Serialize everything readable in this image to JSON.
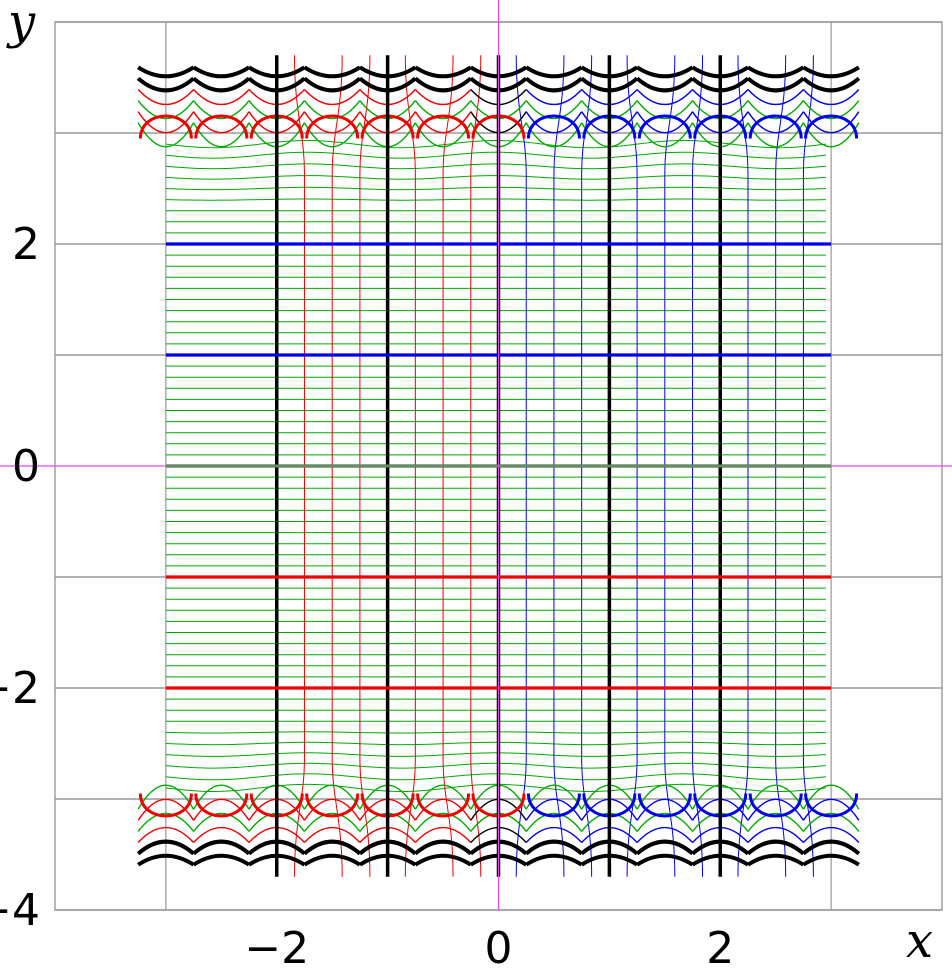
{
  "chart_data": {
    "type": "line",
    "title": "",
    "xlabel": "x",
    "ylabel": "y",
    "xlim": [
      -4,
      4
    ],
    "ylim": [
      -4,
      4
    ],
    "grid": true,
    "x_ticks": [
      {
        "value": -2,
        "label": "−2"
      },
      {
        "value": 0,
        "label": "0"
      },
      {
        "value": 2,
        "label": "2"
      }
    ],
    "y_ticks": [
      {
        "value": 2,
        "label": "2"
      },
      {
        "value": 0,
        "label": "0"
      },
      {
        "value": -2,
        "label": "−2"
      },
      {
        "value": -4,
        "label": "−4"
      }
    ],
    "plot_domain": {
      "x": [
        -3,
        3
      ],
      "y": [
        -4,
        4
      ]
    },
    "colors": {
      "axes": "#ee44ee",
      "grid": "#999999",
      "green": "#00aa00",
      "red": "#ee0000",
      "blue": "#0000ee",
      "black": "#000000"
    },
    "series": [
      {
        "color": "black",
        "kind": "vertical",
        "x": [
          -2,
          -1,
          0,
          1,
          2
        ]
      },
      {
        "color": "red",
        "kind": "vertical",
        "x": [
          -1.75,
          -1.5,
          -1.25,
          -0.75,
          -0.5,
          -0.25
        ]
      },
      {
        "color": "blue",
        "kind": "vertical",
        "x": [
          0.25,
          0.5,
          0.75,
          1.25,
          1.5,
          1.75,
          2.25,
          2.5,
          2.75
        ]
      },
      {
        "color": "blue",
        "kind": "horizontal",
        "y": [
          2,
          1
        ]
      },
      {
        "color": "green",
        "kind": "horizontal",
        "y": [
          0
        ]
      },
      {
        "color": "red",
        "kind": "horizontal",
        "y": [
          -1,
          -2
        ]
      },
      {
        "color": "green",
        "kind": "horizontal-thin",
        "y_range": [
          -2.9,
          2.9
        ],
        "step": 0.1
      }
    ],
    "singular_rows_y": [
      3.6,
      -3.6
    ],
    "singular_period": 0.5
  }
}
